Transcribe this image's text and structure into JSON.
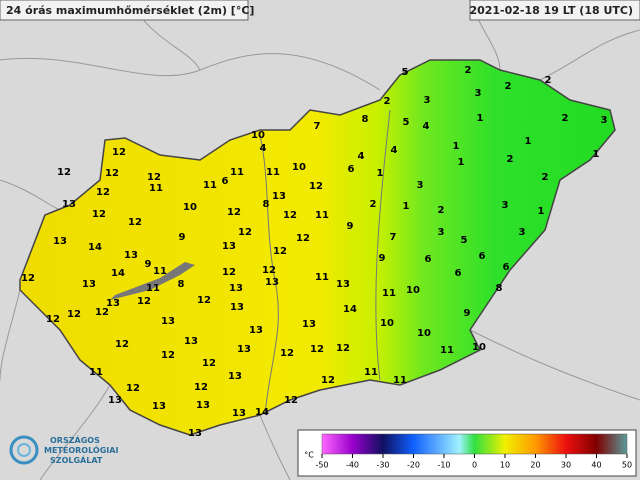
{
  "header": {
    "title": "24 órás maximumhőmérséklet (2m) [°C]",
    "timestamp": "2021-02-18 19 LT (18 UTC)"
  },
  "station_values": [
    5,
    2,
    2,
    2,
    3,
    3,
    2,
    7,
    8,
    5,
    4,
    1,
    2,
    3,
    10,
    4,
    4,
    4,
    1,
    1,
    1,
    12,
    12,
    12,
    12,
    11,
    11,
    6,
    11,
    11,
    10,
    6,
    1,
    1,
    2,
    12,
    10,
    13,
    12,
    3,
    2,
    13,
    12,
    12,
    12,
    8,
    12,
    11,
    2,
    1,
    2,
    3,
    1,
    13,
    14,
    13,
    9,
    12,
    12,
    9,
    7,
    3,
    5,
    3,
    12,
    14,
    9,
    13,
    12,
    9,
    6,
    6,
    6,
    6,
    13,
    11,
    8,
    12,
    12,
    11,
    8,
    11,
    13,
    13,
    13,
    12,
    12,
    13,
    11,
    10,
    12,
    12,
    12,
    13,
    14,
    13,
    10,
    9,
    13,
    10,
    12,
    13,
    13,
    12,
    12,
    13,
    12,
    12,
    11,
    10,
    11,
    12,
    13,
    11,
    12,
    11,
    12,
    12,
    13,
    12,
    13,
    13,
    13,
    14,
    13
  ],
  "colorbar": {
    "unit": "°C",
    "ticks": [
      -50,
      -40,
      -30,
      -20,
      -10,
      0,
      10,
      20,
      30,
      40,
      50
    ]
  },
  "logo": {
    "lines": [
      "ORSZÁGOS",
      "METEOROLÓGIAI",
      "SZOLGÁLAT"
    ]
  }
}
